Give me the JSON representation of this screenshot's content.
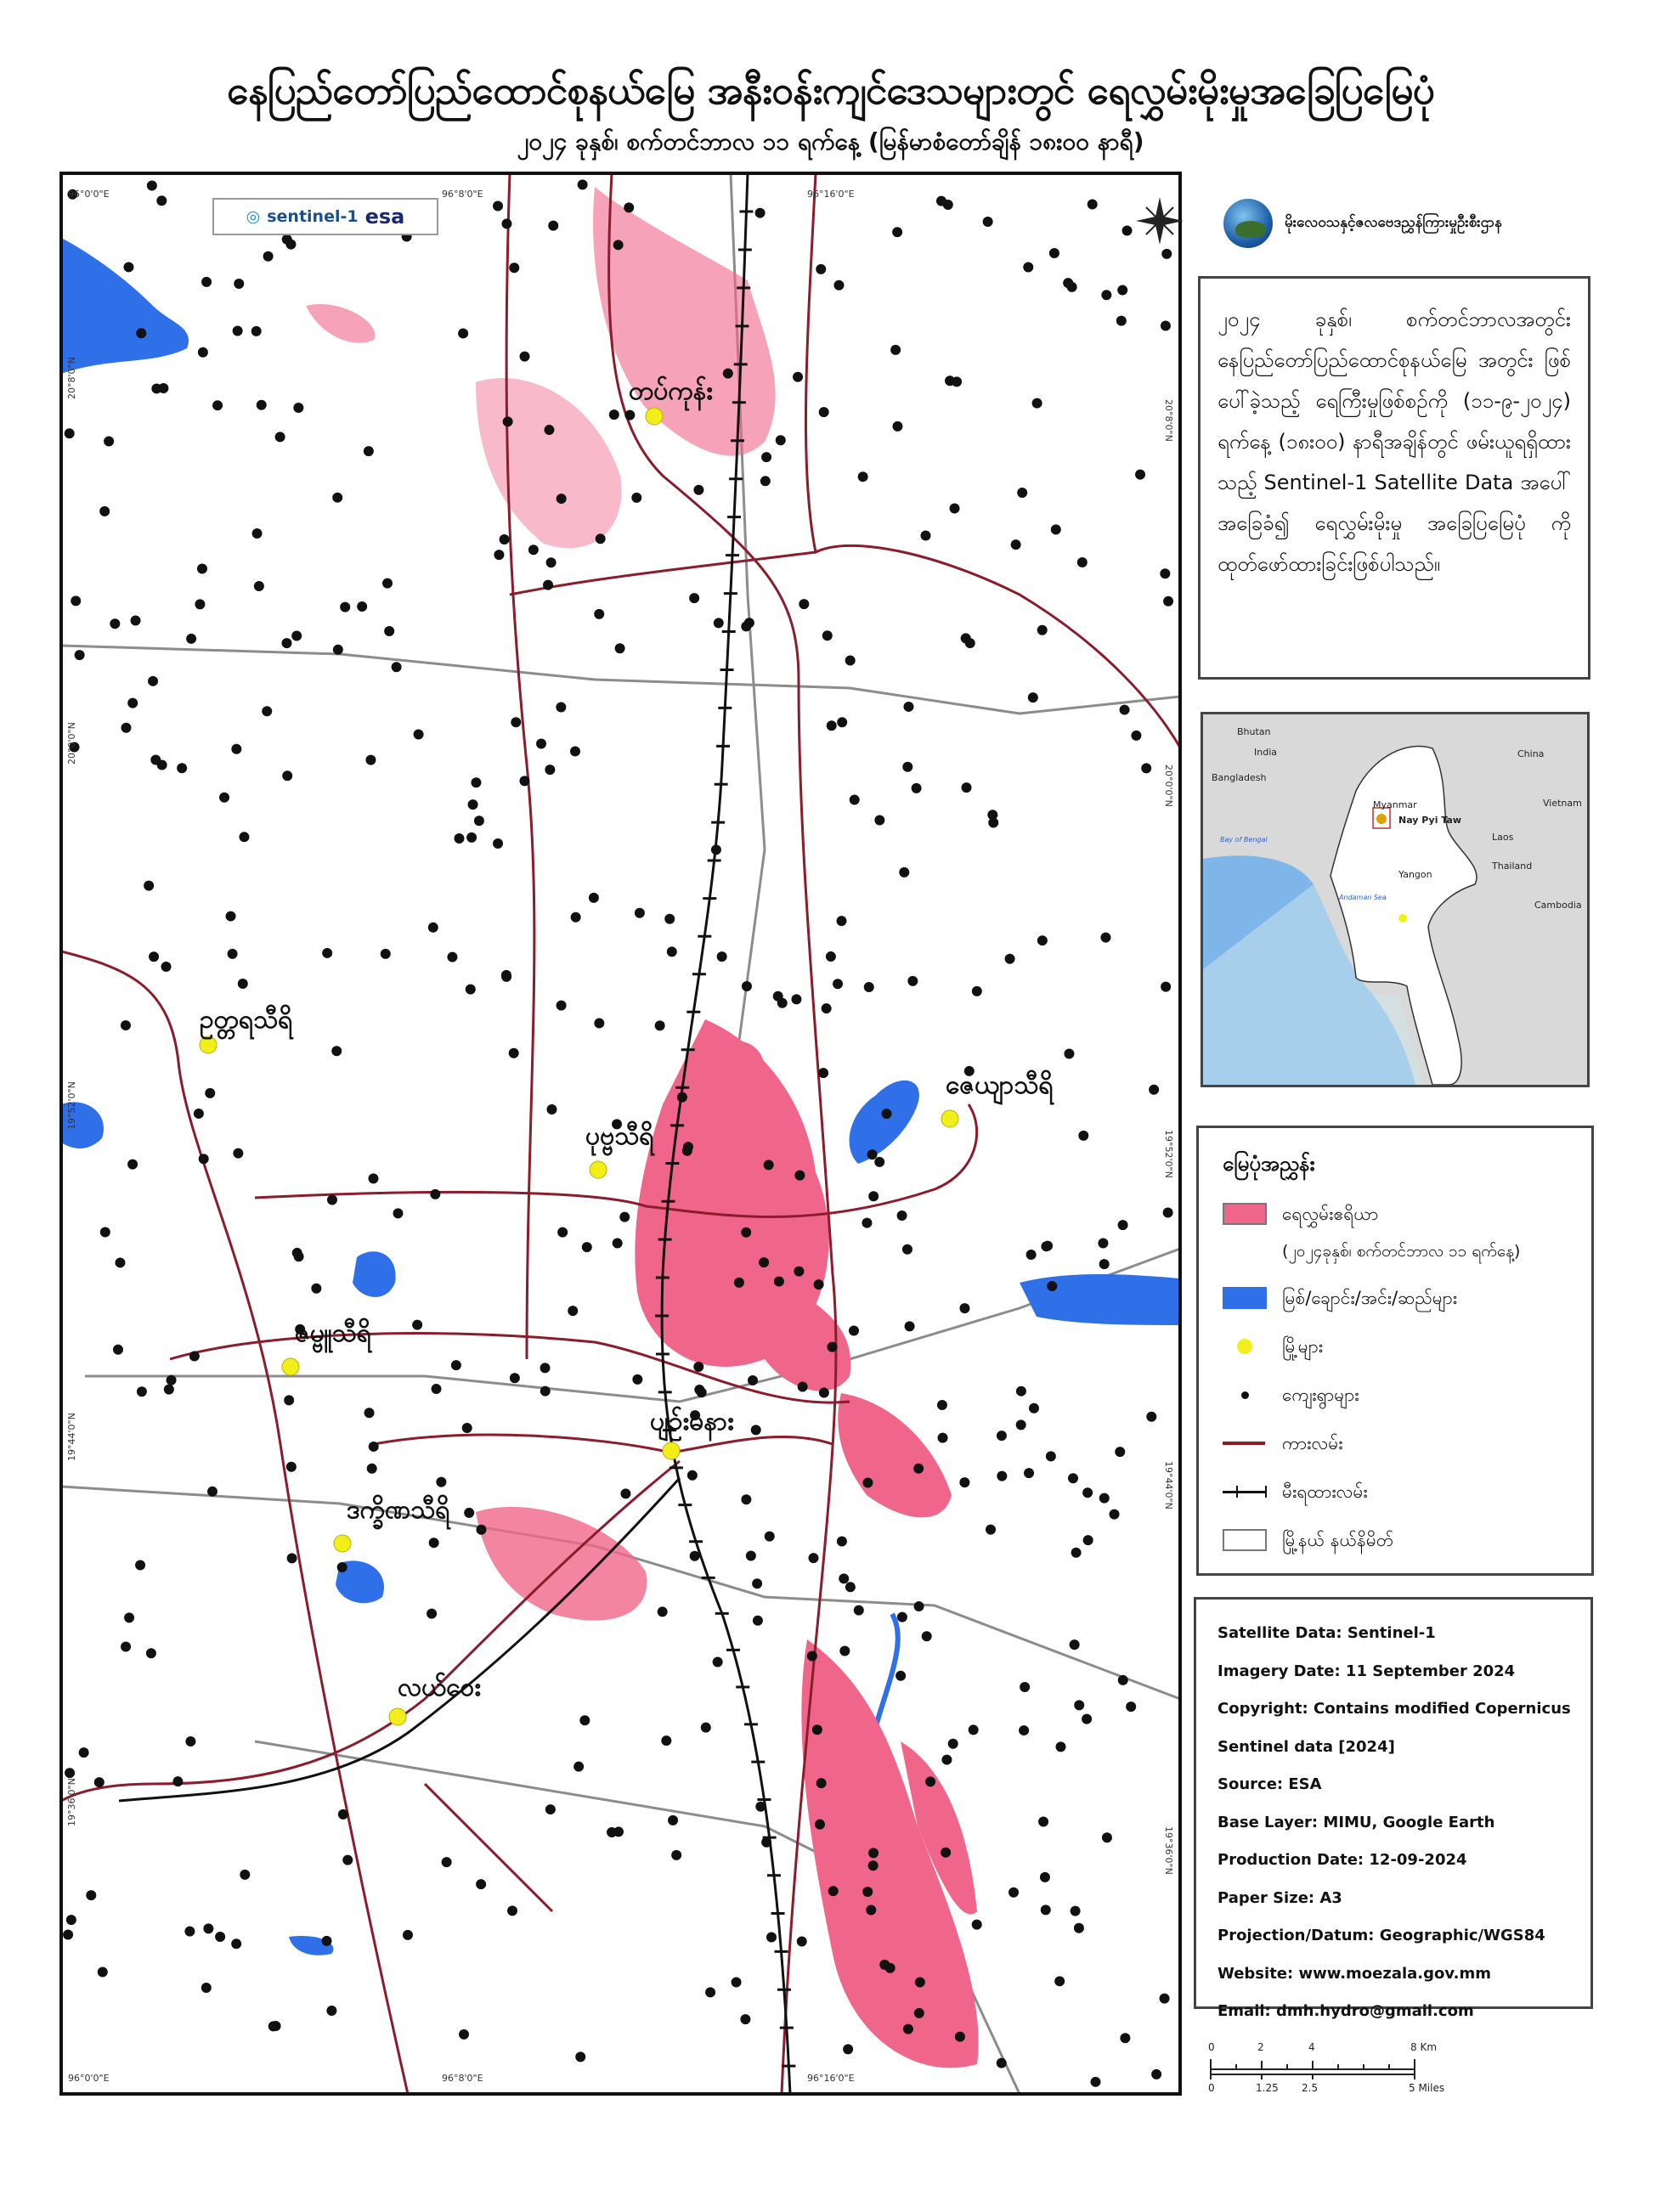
{
  "title": "နေပြည်တော်ပြည်ထောင်စုနယ်မြေ အနီးဝန်းကျင်ဒေသများတွင် ရေလွှမ်းမိုးမှုအခြေပြမြေပုံ",
  "subtitle": "၂၀၂၄ ခုနှစ်၊ စက်တင်ဘာလ ၁၁ ရက်နေ့ (မြန်မာစံတော်ချိန် ၁၈း၀၀ နာရီ)",
  "agency": "မိုးလေဝသနှင့်ဇလဗေဒညွှန်ကြားမှုဦးစီးဌာန",
  "logos": {
    "sentinel": "sentinel-1",
    "esa": "esa"
  },
  "info_text": "၂၀၂၄ ခုနှစ်၊ စက်တင်ဘာလအတွင်း နေပြည်တော်ပြည်ထောင်စုနယ်မြေ အတွင်း ဖြစ်ပေါ်ခဲ့သည့် ရေကြီးမှုဖြစ်စဉ်ကို (၁၁-၉-၂၀၂၄) ရက်နေ့ (၁၈း၀၀) နာရီအချိန်တွင် ဖမ်းယူရရှိထားသည့် Sentinel-1 Satellite Data အပေါ် အခြေခံ၍ ရေလွှမ်းမိုးမှု အခြေပြမြေပုံ ကို ထုတ်ဖော်ထားခြင်းဖြစ်ပါသည်။",
  "map": {
    "grid_top": [
      "96°0'0\"E",
      "96°8'0\"E",
      "96°16'0\"E"
    ],
    "grid_right": [
      "20°8'0\"N",
      "20°0'0\"N",
      "19°52'0\"N",
      "19°44'0\"N",
      "19°36'0\"N"
    ],
    "towns": [
      {
        "name": "တပ်ကုန်း"
      },
      {
        "name": "ဥတ္တရသီရိ"
      },
      {
        "name": "ဇေယျာသီရိ"
      },
      {
        "name": "ပုဗ္ဗသီရိ"
      },
      {
        "name": "ဇမ္ဗူသီရိ"
      },
      {
        "name": "ပျဉ်းမနား"
      },
      {
        "name": "ဒက္ခိဏသီရိ"
      },
      {
        "name": "လယ်ဝေး"
      }
    ],
    "colors": {
      "flood": "#f0668a",
      "water": "#2f6fe8",
      "town": "#f2ee1a",
      "road": "#8a1c2c",
      "boundary": "#888888"
    }
  },
  "inset": {
    "labels": [
      "Bhutan",
      "India",
      "China",
      "Bangladesh",
      "Myanmar",
      "Nay Pyi Taw",
      "Vietnam",
      "Bay of Bengal",
      "Laos",
      "Yangon",
      "Thailand",
      "Andaman Sea",
      "Cambodia"
    ]
  },
  "legend": {
    "title": "မြေပုံအညွှန်း",
    "items": [
      {
        "label": "ရေလွှမ်းဧရိယာ",
        "sub": "(၂၀၂၄ခုနှစ်၊ စက်တင်ဘာလ ၁၁ ရက်နေ့)"
      },
      {
        "label": "မြစ်/ချောင်း/အင်း/ဆည်များ"
      },
      {
        "label": "မြို့များ"
      },
      {
        "label": "ကျေးရွာများ"
      },
      {
        "label": "ကားလမ်း"
      },
      {
        "label": "မီးရထားလမ်း"
      },
      {
        "label": "မြို့နယ် နယ်နိမိတ်"
      }
    ]
  },
  "metadata": [
    "Satellite Data: Sentinel-1",
    "Imagery Date: 11 September 2024",
    "Copyright: Contains modified Copernicus",
    "Sentinel data [2024]",
    "Source: ESA",
    "Base Layer: MIMU, Google Earth",
    "Production Date: 12-09-2024",
    "Paper Size: A3",
    "Projection/Datum: Geographic/WGS84",
    "Website: www.moezala.gov.mm",
    "Email: dmh.hydro@gmail.com"
  ],
  "scale_bar": {
    "km": [
      "0",
      "2",
      "4",
      "8 Km"
    ],
    "miles": [
      "0",
      "1.25",
      "2.5",
      "5 Miles"
    ]
  }
}
